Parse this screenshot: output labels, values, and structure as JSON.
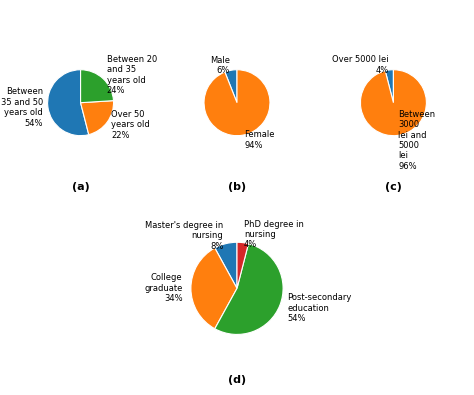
{
  "chart_data": [
    {
      "type": "pie",
      "title": "(a)",
      "categories": [
        "Between\n35 and 50\nyears old\n54%",
        "Over 50\nyears old\n22%",
        "Between 20\nand 35\nyears old\n24%"
      ],
      "values": [
        54,
        22,
        24
      ]
    },
    {
      "type": "pie",
      "title": "(b)",
      "categories": [
        "Male\n6%",
        "Female\n94%"
      ],
      "values": [
        6,
        94
      ]
    },
    {
      "type": "pie",
      "title": "(c)",
      "categories": [
        "Over 5000 lei\n4%",
        "Between\n3000\nlei and\n5000\nlei\n96%"
      ],
      "values": [
        4,
        96
      ]
    },
    {
      "type": "pie",
      "title": "(d)",
      "categories": [
        "Master's degree in\nnursing\n8%",
        "College\ngraduate\n34%",
        "Post-secondary\neducation\n54%",
        "PhD degree in\nnursing\n4%"
      ],
      "values": [
        8,
        34,
        54,
        4
      ]
    }
  ]
}
